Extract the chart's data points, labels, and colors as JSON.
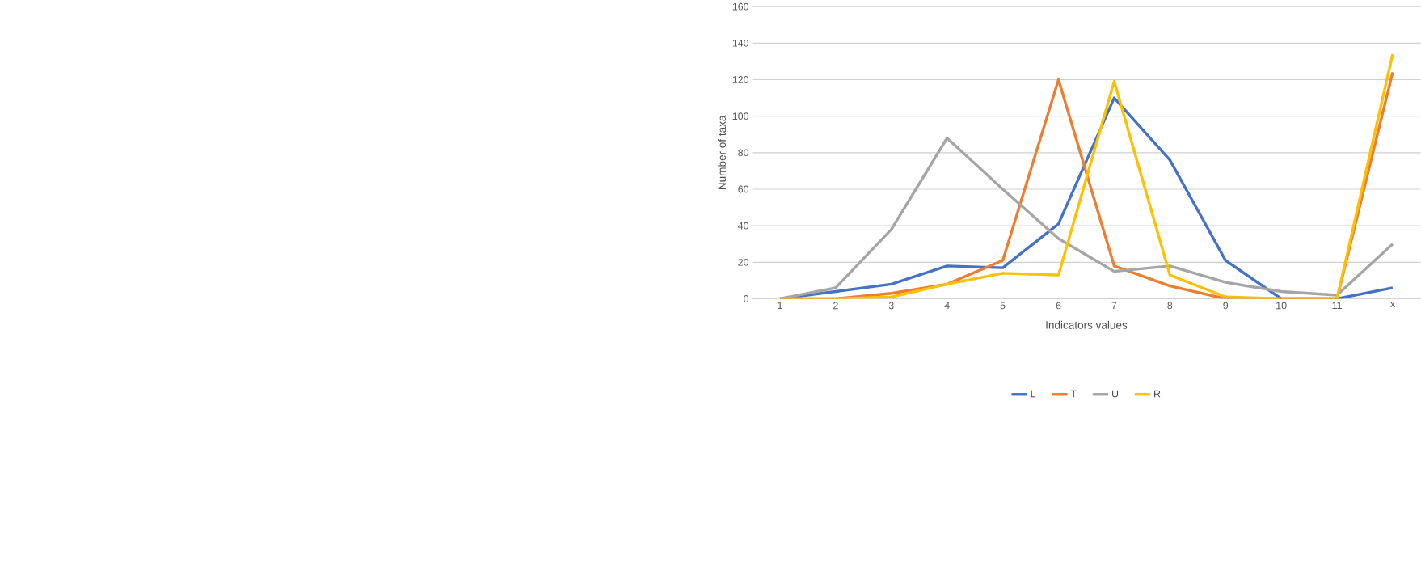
{
  "chart_data": {
    "type": "line",
    "xlabel": "Indicators values",
    "ylabel": "Number of taxa",
    "categories": [
      "1",
      "2",
      "3",
      "4",
      "5",
      "6",
      "7",
      "8",
      "9",
      "10",
      "11",
      "x"
    ],
    "series": [
      {
        "name": "L",
        "color": "#4472c4",
        "values": [
          0,
          4,
          8,
          18,
          17,
          41,
          110,
          76,
          21,
          0,
          0,
          6
        ]
      },
      {
        "name": "T",
        "color": "#ed7d31",
        "values": [
          0,
          0,
          3,
          8,
          21,
          120,
          18,
          7,
          0,
          0,
          0,
          124
        ]
      },
      {
        "name": "U",
        "color": "#a5a5a5",
        "values": [
          0,
          6,
          38,
          88,
          60,
          33,
          15,
          18,
          9,
          4,
          2,
          30
        ]
      },
      {
        "name": "R",
        "color": "#ffc000",
        "values": [
          0,
          0,
          1,
          8,
          14,
          13,
          119,
          13,
          1,
          0,
          0,
          134
        ]
      }
    ],
    "ylim": [
      0,
      160
    ],
    "yticks": [
      0,
      20,
      40,
      60,
      80,
      100,
      120,
      140,
      160
    ],
    "grid": "y",
    "legend": "bottom",
    "marker": "none",
    "line_style": "solid"
  }
}
